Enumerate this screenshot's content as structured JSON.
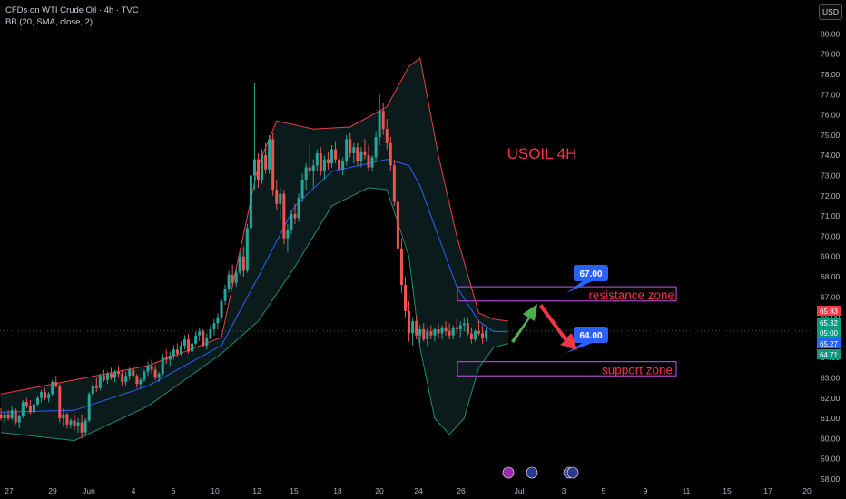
{
  "header": {
    "symbol_line": "CFDs on WTI Crude Oil · 4h · TVC",
    "indicator_line": "BB (20, SMA, close, 2)",
    "currency_button": "USD"
  },
  "colors": {
    "background": "#000000",
    "up_candle": "#26a69a",
    "down_candle": "#ef5350",
    "bb_upper": "#e8403f",
    "bb_lower": "#1f8a70",
    "bb_basis": "#2962ff",
    "bb_fill": "#0b1a1a",
    "zone_border": "#a64ac9",
    "zone_text": "#f23645",
    "title_text": "#f23645",
    "callout_bg": "#2962ff",
    "arrow_up": "#4caf50",
    "arrow_down": "#f23645"
  },
  "chart_data": {
    "type": "candlestick",
    "title": "USOIL 4H",
    "ylim": [
      58.0,
      80.6
    ],
    "y_ticks": [
      58,
      59,
      60,
      61,
      62,
      63,
      64,
      65,
      66,
      67,
      68,
      69,
      70,
      71,
      72,
      73,
      74,
      75,
      76,
      77,
      78,
      79,
      80
    ],
    "y_tick_labels": [
      "58.00",
      "59.00",
      "60.00",
      "61.00",
      "62.00",
      "63.00",
      "64.00",
      "65.00",
      "66.00",
      "67.00",
      "68.00",
      "69.00",
      "70.00",
      "71.00",
      "72.00",
      "73.00",
      "74.00",
      "75.00",
      "76.00",
      "77.00",
      "78.00",
      "79.00",
      "80.00"
    ],
    "x_labels": [
      "27",
      "29",
      "Jun",
      "4",
      "6",
      "10",
      "12",
      "15",
      "18",
      "20",
      "24",
      "26",
      "Jul",
      "3",
      "5",
      "9",
      "11",
      "15",
      "17",
      "20"
    ],
    "price_labels": [
      {
        "value": 65.83,
        "text": "65.83",
        "color": "#f23645"
      },
      {
        "value": 65.32,
        "text": "65.32",
        "color": "#089981"
      },
      {
        "value": 65.0,
        "text": "05:00",
        "color": "#089981"
      },
      {
        "value": 65.27,
        "text": "65.27",
        "color": "#2962ff"
      },
      {
        "value": 64.71,
        "text": "64.71",
        "color": "#089981"
      }
    ],
    "candles": [
      [
        61.2,
        61.5,
        60.9,
        61.0
      ],
      [
        61.0,
        61.3,
        60.8,
        61.2
      ],
      [
        61.2,
        61.4,
        60.9,
        61.0
      ],
      [
        61.0,
        61.6,
        60.9,
        61.4
      ],
      [
        61.4,
        61.5,
        60.7,
        60.8
      ],
      [
        60.8,
        61.2,
        60.5,
        61.1
      ],
      [
        61.1,
        61.9,
        61.0,
        61.8
      ],
      [
        61.8,
        62.0,
        61.5,
        61.6
      ],
      [
        61.6,
        61.9,
        61.2,
        61.3
      ],
      [
        61.3,
        61.8,
        61.2,
        61.7
      ],
      [
        61.7,
        62.1,
        61.6,
        62.0
      ],
      [
        62.0,
        62.4,
        61.8,
        62.3
      ],
      [
        62.3,
        62.5,
        61.9,
        62.0
      ],
      [
        62.0,
        62.3,
        61.8,
        62.2
      ],
      [
        62.2,
        62.9,
        62.1,
        62.8
      ],
      [
        62.8,
        63.1,
        62.5,
        62.6
      ],
      [
        62.6,
        62.7,
        60.8,
        61.0
      ],
      [
        61.0,
        61.5,
        60.6,
        61.2
      ],
      [
        61.2,
        61.3,
        60.5,
        60.7
      ],
      [
        60.7,
        61.0,
        60.5,
        60.9
      ],
      [
        60.9,
        61.2,
        60.4,
        60.6
      ],
      [
        60.6,
        61.0,
        60.3,
        60.8
      ],
      [
        60.8,
        61.2,
        60.0,
        60.3
      ],
      [
        60.3,
        61.0,
        60.1,
        60.9
      ],
      [
        60.9,
        62.3,
        60.8,
        62.2
      ],
      [
        62.2,
        62.8,
        62.0,
        62.6
      ],
      [
        62.6,
        63.0,
        62.3,
        62.5
      ],
      [
        62.5,
        63.2,
        62.4,
        63.1
      ],
      [
        63.1,
        63.4,
        62.8,
        62.9
      ],
      [
        62.9,
        63.3,
        62.7,
        63.2
      ],
      [
        63.2,
        63.5,
        62.9,
        63.0
      ],
      [
        63.0,
        63.4,
        62.8,
        63.3
      ],
      [
        63.3,
        63.6,
        63.0,
        63.2
      ],
      [
        63.2,
        63.4,
        62.6,
        62.8
      ],
      [
        62.8,
        63.3,
        62.6,
        63.1
      ],
      [
        63.1,
        63.5,
        62.9,
        63.4
      ],
      [
        63.4,
        63.6,
        63.0,
        63.1
      ],
      [
        63.1,
        63.2,
        62.5,
        62.7
      ],
      [
        62.7,
        63.0,
        62.5,
        62.9
      ],
      [
        62.9,
        63.4,
        62.8,
        63.3
      ],
      [
        63.3,
        63.8,
        63.1,
        63.6
      ],
      [
        63.6,
        63.9,
        63.2,
        63.4
      ],
      [
        63.4,
        63.6,
        62.9,
        63.0
      ],
      [
        63.0,
        63.3,
        62.8,
        63.2
      ],
      [
        63.2,
        64.2,
        63.1,
        64.0
      ],
      [
        64.0,
        64.4,
        63.7,
        63.9
      ],
      [
        63.9,
        64.3,
        63.6,
        64.1
      ],
      [
        64.1,
        64.6,
        63.9,
        64.4
      ],
      [
        64.4,
        64.7,
        64.0,
        64.2
      ],
      [
        64.2,
        64.8,
        64.1,
        64.6
      ],
      [
        64.6,
        65.1,
        64.4,
        64.9
      ],
      [
        64.9,
        65.2,
        64.2,
        64.3
      ],
      [
        64.3,
        64.9,
        64.1,
        64.7
      ],
      [
        64.7,
        65.3,
        64.6,
        65.1
      ],
      [
        65.1,
        65.5,
        64.8,
        65.3
      ],
      [
        65.3,
        65.4,
        64.5,
        64.6
      ],
      [
        64.6,
        65.2,
        64.4,
        65.0
      ],
      [
        65.0,
        65.6,
        64.9,
        65.4
      ],
      [
        65.4,
        65.9,
        65.1,
        65.7
      ],
      [
        65.7,
        66.2,
        65.4,
        66.0
      ],
      [
        66.0,
        66.9,
        65.8,
        66.8
      ],
      [
        66.8,
        67.6,
        66.6,
        67.4
      ],
      [
        67.4,
        68.3,
        67.2,
        68.1
      ],
      [
        68.1,
        68.6,
        67.5,
        67.7
      ],
      [
        67.7,
        68.4,
        67.5,
        68.2
      ],
      [
        68.2,
        69.2,
        68.1,
        69.0
      ],
      [
        69.0,
        69.5,
        68.0,
        68.3
      ],
      [
        68.3,
        70.6,
        68.2,
        70.4
      ],
      [
        70.4,
        73.3,
        70.2,
        73.0
      ],
      [
        73.0,
        77.6,
        72.3,
        73.8
      ],
      [
        73.8,
        74.1,
        72.4,
        72.8
      ],
      [
        72.8,
        74.3,
        72.6,
        74.0
      ],
      [
        74.0,
        74.6,
        73.1,
        73.3
      ],
      [
        73.3,
        75.0,
        73.1,
        74.8
      ],
      [
        74.8,
        75.1,
        72.0,
        72.3
      ],
      [
        72.3,
        72.8,
        71.3,
        71.6
      ],
      [
        71.6,
        72.4,
        70.8,
        72.1
      ],
      [
        72.1,
        72.3,
        69.6,
        69.9
      ],
      [
        69.9,
        70.6,
        69.2,
        70.3
      ],
      [
        70.3,
        71.3,
        70.1,
        71.1
      ],
      [
        71.1,
        71.6,
        70.6,
        70.9
      ],
      [
        70.9,
        72.1,
        70.7,
        71.9
      ],
      [
        71.9,
        73.1,
        71.7,
        72.8
      ],
      [
        72.8,
        73.6,
        72.3,
        73.4
      ],
      [
        73.4,
        74.5,
        73.0,
        73.2
      ],
      [
        73.2,
        73.8,
        72.4,
        73.5
      ],
      [
        73.5,
        74.3,
        73.2,
        74.1
      ],
      [
        74.1,
        74.4,
        73.0,
        73.2
      ],
      [
        73.2,
        74.0,
        72.8,
        73.8
      ],
      [
        73.8,
        74.2,
        73.3,
        73.6
      ],
      [
        73.6,
        74.5,
        73.4,
        74.3
      ],
      [
        74.3,
        74.7,
        73.6,
        73.8
      ],
      [
        73.8,
        74.1,
        73.0,
        73.3
      ],
      [
        73.3,
        73.9,
        73.0,
        73.7
      ],
      [
        73.7,
        75.0,
        73.5,
        74.8
      ],
      [
        74.8,
        75.1,
        73.9,
        74.1
      ],
      [
        74.1,
        74.6,
        73.6,
        74.4
      ],
      [
        74.4,
        74.6,
        73.5,
        73.7
      ],
      [
        73.7,
        74.4,
        73.4,
        74.2
      ],
      [
        74.2,
        74.8,
        73.8,
        74.0
      ],
      [
        74.0,
        74.5,
        73.2,
        73.4
      ],
      [
        73.4,
        74.0,
        73.2,
        73.9
      ],
      [
        73.9,
        75.2,
        73.7,
        74.9
      ],
      [
        74.9,
        77.0,
        74.5,
        76.2
      ],
      [
        76.2,
        76.6,
        75.0,
        75.3
      ],
      [
        75.3,
        75.8,
        74.3,
        74.6
      ],
      [
        74.6,
        74.9,
        73.2,
        73.5
      ],
      [
        73.5,
        73.8,
        71.5,
        71.7
      ],
      [
        71.7,
        72.2,
        69.0,
        69.4
      ],
      [
        69.4,
        69.9,
        67.2,
        67.6
      ],
      [
        67.6,
        68.0,
        66.0,
        66.3
      ],
      [
        66.3,
        66.8,
        64.8,
        65.2
      ],
      [
        65.2,
        66.0,
        64.6,
        65.8
      ],
      [
        65.8,
        66.1,
        64.9,
        65.1
      ],
      [
        65.1,
        65.6,
        64.7,
        65.4
      ],
      [
        65.4,
        65.7,
        64.8,
        64.9
      ],
      [
        64.9,
        65.5,
        64.6,
        65.3
      ],
      [
        65.3,
        65.6,
        64.9,
        65.1
      ],
      [
        65.1,
        65.5,
        64.8,
        65.4
      ],
      [
        65.4,
        65.7,
        65.0,
        65.2
      ],
      [
        65.2,
        65.6,
        64.9,
        65.5
      ],
      [
        65.5,
        65.8,
        65.1,
        65.3
      ],
      [
        65.3,
        65.7,
        64.9,
        65.1
      ],
      [
        65.1,
        65.6,
        64.9,
        65.5
      ],
      [
        65.5,
        65.9,
        65.2,
        65.4
      ],
      [
        65.4,
        65.8,
        65.0,
        65.6
      ],
      [
        65.6,
        66.0,
        65.3,
        65.7
      ],
      [
        65.7,
        66.0,
        65.1,
        65.2
      ],
      [
        65.2,
        65.5,
        64.7,
        64.9
      ],
      [
        64.9,
        65.4,
        64.8,
        65.3
      ],
      [
        65.3,
        65.8,
        65.1,
        65.2
      ],
      [
        65.2,
        65.6,
        64.7,
        65.0
      ],
      [
        65.0,
        65.5,
        64.8,
        65.32
      ]
    ],
    "bb_upper": [
      [
        0,
        62.2
      ],
      [
        20,
        62.9
      ],
      [
        40,
        63.6
      ],
      [
        60,
        65.0
      ],
      [
        70,
        73.5
      ],
      [
        75,
        75.7
      ],
      [
        85,
        75.3
      ],
      [
        95,
        75.4
      ],
      [
        105,
        76.4
      ],
      [
        111,
        78.4
      ],
      [
        114,
        78.8
      ],
      [
        119,
        74.0
      ],
      [
        124,
        70.0
      ],
      [
        130,
        66.2
      ],
      [
        134,
        65.9
      ],
      [
        138,
        65.8
      ]
    ],
    "bb_lower": [
      [
        0,
        60.3
      ],
      [
        20,
        59.9
      ],
      [
        40,
        61.6
      ],
      [
        60,
        64.2
      ],
      [
        70,
        65.8
      ],
      [
        80,
        68.5
      ],
      [
        90,
        71.5
      ],
      [
        100,
        72.4
      ],
      [
        105,
        72.3
      ],
      [
        111,
        69.0
      ],
      [
        114,
        64.5
      ],
      [
        118,
        61.0
      ],
      [
        122,
        60.2
      ],
      [
        126,
        61.0
      ],
      [
        130,
        63.5
      ],
      [
        134,
        64.5
      ],
      [
        138,
        64.7
      ]
    ],
    "bb_basis": [
      [
        0,
        61.3
      ],
      [
        20,
        61.4
      ],
      [
        40,
        62.6
      ],
      [
        60,
        64.6
      ],
      [
        70,
        68.0
      ],
      [
        80,
        71.5
      ],
      [
        90,
        73.2
      ],
      [
        100,
        73.6
      ],
      [
        105,
        73.8
      ],
      [
        111,
        73.5
      ],
      [
        114,
        72.5
      ],
      [
        119,
        70.0
      ],
      [
        124,
        67.5
      ],
      [
        130,
        65.8
      ],
      [
        134,
        65.3
      ],
      [
        138,
        65.27
      ]
    ],
    "annotations": {
      "resistance_zone": {
        "top": 67.5,
        "bottom": 66.8,
        "label": "resistance zone"
      },
      "support_zone": {
        "top": 63.8,
        "bottom": 63.1,
        "label": "support zone"
      },
      "callout_up": {
        "text": "67.00"
      },
      "callout_down": {
        "text": "64.00"
      }
    }
  }
}
